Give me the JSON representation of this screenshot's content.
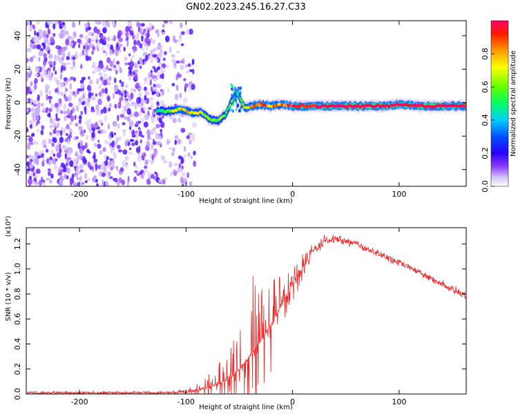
{
  "figure": {
    "title": "GN02.2023.245.16.27.C33"
  },
  "chart_data": [
    {
      "type": "heatmap",
      "xlabel": "Height of straight line (km)",
      "ylabel": "Frequency (Hz)",
      "xlim": [
        -250,
        163
      ],
      "ylim": [
        -50,
        49
      ],
      "xticks": [
        -200,
        -100,
        0,
        100
      ],
      "yticks": [
        -40,
        -20,
        0,
        20,
        40
      ],
      "colorbar": {
        "label": "Normalized spectral amplitude",
        "ticks": [
          0.0,
          0.2,
          0.4,
          0.6,
          0.8
        ],
        "range": [
          0,
          1
        ],
        "colors": [
          "#f2ecfc",
          "#7000ff",
          "#0000ff",
          "#00c8ff",
          "#00ff66",
          "#88ff00",
          "#ffff00",
          "#ff9900",
          "#ff0000",
          "#ff0066"
        ]
      },
      "noise_region": {
        "x_range": [
          -250,
          -105
        ],
        "level": 0.15
      },
      "signal_track": [
        {
          "x": -127,
          "f": -5,
          "a": 0.35
        },
        {
          "x": -115,
          "f": -5,
          "a": 0.45
        },
        {
          "x": -104,
          "f": -4,
          "a": 0.55
        },
        {
          "x": -96,
          "f": -6,
          "a": 0.55
        },
        {
          "x": -85,
          "f": -6,
          "a": 0.5
        },
        {
          "x": -78,
          "f": -10,
          "a": 0.45
        },
        {
          "x": -70,
          "f": -11,
          "a": 0.45
        },
        {
          "x": -63,
          "f": -7,
          "a": 0.4
        },
        {
          "x": -57,
          "f": 1,
          "a": 0.4
        },
        {
          "x": -52,
          "f": 6,
          "a": 0.3
        },
        {
          "x": -45,
          "f": -3,
          "a": 0.5
        },
        {
          "x": -38,
          "f": -2,
          "a": 0.6
        },
        {
          "x": -30,
          "f": -1,
          "a": 0.65
        },
        {
          "x": -20,
          "f": -2,
          "a": 0.6
        },
        {
          "x": -10,
          "f": -1,
          "a": 0.65
        },
        {
          "x": 0,
          "f": -2,
          "a": 0.7
        },
        {
          "x": 15,
          "f": -2,
          "a": 0.75
        },
        {
          "x": 30,
          "f": -2,
          "a": 0.8
        },
        {
          "x": 50,
          "f": -2,
          "a": 0.85
        },
        {
          "x": 70,
          "f": -2,
          "a": 0.9
        },
        {
          "x": 90,
          "f": -2,
          "a": 0.8
        },
        {
          "x": 100,
          "f": -1,
          "a": 0.75
        },
        {
          "x": 120,
          "f": -2,
          "a": 0.85
        },
        {
          "x": 140,
          "f": -2,
          "a": 0.9
        },
        {
          "x": 163,
          "f": -2,
          "a": 0.7
        }
      ]
    },
    {
      "type": "line",
      "xlabel": "Height of straight line (km)",
      "ylabel": "SNR (10 * v/v)",
      "y_multiplier": "(x10⁴)",
      "xlim": [
        -250,
        163
      ],
      "ylim": [
        0.0,
        1.33
      ],
      "xticks": [
        -200,
        -100,
        0,
        100
      ],
      "yticks": [
        0.0,
        0.2,
        0.4,
        0.6,
        0.8,
        1.0,
        1.2
      ],
      "color": "#ee2222",
      "envelope": {
        "x": [
          -250,
          -200,
          -150,
          -110,
          -100,
          -90,
          -80,
          -70,
          -60,
          -50,
          -40,
          -30,
          -20,
          -10,
          0,
          10,
          20,
          30,
          40,
          60,
          80,
          100,
          120,
          140,
          163
        ],
        "base": [
          0.01,
          0.01,
          0.01,
          0.01,
          0.02,
          0.03,
          0.05,
          0.08,
          0.12,
          0.2,
          0.3,
          0.42,
          0.55,
          0.72,
          0.88,
          1.02,
          1.15,
          1.22,
          1.24,
          1.2,
          1.12,
          1.05,
          0.97,
          0.88,
          0.78
        ],
        "spike": [
          0.005,
          0.005,
          0.005,
          0.01,
          0.02,
          0.04,
          0.08,
          0.15,
          0.22,
          0.45,
          0.6,
          0.5,
          0.4,
          0.25,
          0.2,
          0.12,
          0.06,
          0.03,
          0.02,
          0.02,
          0.02,
          0.02,
          0.02,
          0.02,
          0.02
        ]
      }
    }
  ]
}
